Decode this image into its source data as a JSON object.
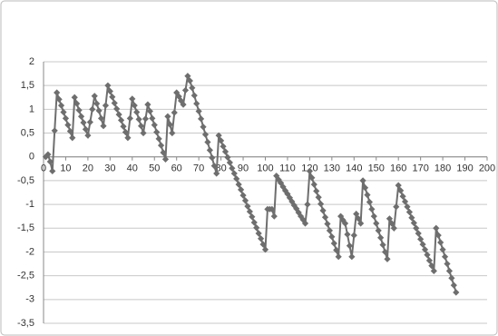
{
  "chart_data": {
    "type": "line",
    "x": [
      1,
      2,
      3,
      4,
      5,
      6,
      7,
      8,
      9,
      10,
      11,
      12,
      13,
      14,
      15,
      16,
      17,
      18,
      19,
      20,
      21,
      22,
      23,
      24,
      25,
      26,
      27,
      28,
      29,
      30,
      31,
      32,
      33,
      34,
      35,
      36,
      37,
      38,
      39,
      40,
      41,
      42,
      43,
      44,
      45,
      46,
      47,
      48,
      49,
      50,
      51,
      52,
      53,
      54,
      55,
      56,
      57,
      58,
      59,
      60,
      61,
      62,
      63,
      64,
      65,
      66,
      67,
      68,
      69,
      70,
      71,
      72,
      73,
      74,
      75,
      76,
      77,
      78,
      79,
      80,
      81,
      82,
      83,
      84,
      85,
      86,
      87,
      88,
      89,
      90,
      91,
      92,
      93,
      94,
      95,
      96,
      97,
      98,
      99,
      100,
      101,
      102,
      103,
      104,
      105,
      106,
      107,
      108,
      109,
      110,
      111,
      112,
      113,
      114,
      115,
      116,
      117,
      118,
      119,
      120,
      121,
      122,
      123,
      124,
      125,
      126,
      127,
      128,
      129,
      130,
      131,
      132,
      133,
      134,
      135,
      136,
      137,
      138,
      139,
      140,
      141,
      142,
      143,
      144,
      145,
      146,
      147,
      148,
      149,
      150,
      151,
      152,
      153,
      154,
      155,
      156,
      157,
      158,
      159,
      160,
      161,
      162,
      163,
      164,
      165,
      166,
      167,
      168,
      169,
      170,
      171,
      172,
      173,
      174,
      175,
      176,
      177,
      178,
      179,
      180,
      181,
      182,
      183,
      184,
      185,
      186
    ],
    "series": [
      {
        "color": "#6e6e6e",
        "values": [
          0,
          0.05,
          -0.1,
          -0.3,
          0.55,
          1.35,
          1.21,
          1.08,
          0.94,
          0.81,
          0.67,
          0.54,
          0.4,
          1.25,
          1.12,
          0.98,
          0.85,
          0.72,
          0.58,
          0.45,
          0.73,
          1.0,
          1.28,
          1.12,
          0.97,
          0.81,
          0.65,
          1.08,
          1.5,
          1.38,
          1.26,
          1.13,
          1.01,
          0.89,
          0.77,
          0.64,
          0.52,
          0.4,
          0.81,
          1.22,
          1.08,
          0.94,
          0.79,
          0.65,
          0.5,
          0.8,
          1.1,
          0.96,
          0.81,
          0.67,
          0.52,
          0.38,
          0.24,
          0.09,
          -0.05,
          0.85,
          0.68,
          0.5,
          0.93,
          1.35,
          1.27,
          1.18,
          1.1,
          1.4,
          1.7,
          1.6,
          1.45,
          1.29,
          1.12,
          0.96,
          0.8,
          0.63,
          0.47,
          0.31,
          0.14,
          -0.02,
          -0.19,
          -0.35,
          0.45,
          0.34,
          0.22,
          0.11,
          -0.01,
          -0.12,
          -0.24,
          -0.35,
          -0.46,
          -0.58,
          -0.69,
          -0.81,
          -0.92,
          -1.04,
          -1.15,
          -1.26,
          -1.38,
          -1.49,
          -1.61,
          -1.72,
          -1.84,
          -1.95,
          -1.1,
          -1.1,
          -1.1,
          -1.25,
          -0.4,
          -0.48,
          -0.55,
          -0.63,
          -0.71,
          -0.78,
          -0.86,
          -0.94,
          -1.02,
          -1.09,
          -1.17,
          -1.25,
          -1.32,
          -1.4,
          -1.0,
          -0.3,
          -0.44,
          -0.58,
          -0.72,
          -0.85,
          -0.99,
          -1.13,
          -1.27,
          -1.41,
          -1.55,
          -1.68,
          -1.82,
          -1.96,
          -2.1,
          -1.25,
          -1.33,
          -1.4,
          -1.63,
          -1.87,
          -2.1,
          -1.65,
          -1.2,
          -1.3,
          -1.4,
          -0.5,
          -0.65,
          -0.8,
          -0.95,
          -1.1,
          -1.25,
          -1.4,
          -1.55,
          -1.7,
          -1.85,
          -2.0,
          -2.15,
          -1.3,
          -1.4,
          -1.5,
          -1.05,
          -0.6,
          -0.71,
          -0.83,
          -0.94,
          -1.05,
          -1.16,
          -1.28,
          -1.39,
          -1.5,
          -1.61,
          -1.73,
          -1.84,
          -1.95,
          -2.06,
          -2.18,
          -2.29,
          -2.4,
          -1.5,
          -1.65,
          -1.8,
          -1.95,
          -2.1,
          -2.25,
          -2.4,
          -2.55,
          -2.7,
          -2.85
        ]
      }
    ],
    "xlim": [
      0,
      200
    ],
    "xticks": [
      0,
      10,
      20,
      30,
      40,
      50,
      60,
      70,
      80,
      90,
      100,
      110,
      120,
      130,
      140,
      150,
      160,
      170,
      180,
      190,
      200
    ],
    "ylim": [
      -3.5,
      2
    ],
    "yticks": [
      2,
      {
        "value": 1.5,
        "label": "1,5"
      },
      1,
      {
        "value": 0.5,
        "label": "0,5"
      },
      0,
      {
        "value": -0.5,
        "label": "-0,5"
      },
      -1,
      {
        "value": -1.5,
        "label": "-1,5"
      },
      -2,
      {
        "value": -2.5,
        "label": "-2,5"
      },
      -3,
      {
        "value": -3.5,
        "label": "-3,5"
      }
    ],
    "grid": true
  }
}
